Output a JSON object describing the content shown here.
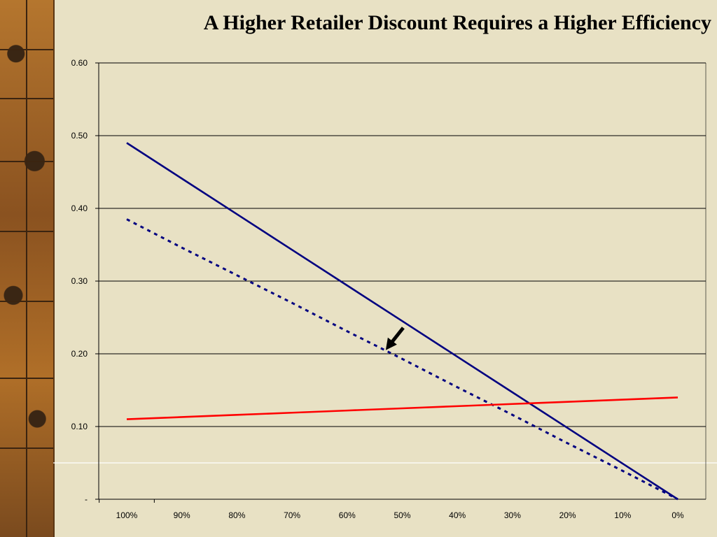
{
  "slide": {
    "title": "A Higher Retailer Discount Requires a Higher Efficiency"
  },
  "chart_data": {
    "type": "line",
    "title": "A Higher Retailer Discount Requires a Higher Efficiency",
    "xlabel": "",
    "ylabel": "",
    "categories": [
      "100%",
      "90%",
      "80%",
      "70%",
      "60%",
      "50%",
      "40%",
      "30%",
      "20%",
      "10%",
      "0%"
    ],
    "x_values": [
      100,
      90,
      80,
      70,
      60,
      50,
      40,
      30,
      20,
      10,
      0
    ],
    "y_ticks": [
      "-",
      "0.10",
      "0.20",
      "0.30",
      "0.40",
      "0.50",
      "0.60"
    ],
    "ylim": [
      0,
      0.6
    ],
    "grid": true,
    "legend": "none",
    "series": [
      {
        "style": "solid",
        "color": "#000080",
        "values": [
          0.49,
          0.441,
          0.392,
          0.343,
          0.294,
          0.245,
          0.196,
          0.147,
          0.098,
          0.049,
          0.0
        ]
      },
      {
        "style": "dotted",
        "color": "#000080",
        "values": [
          0.385,
          0.346,
          0.308,
          0.27,
          0.231,
          0.193,
          0.154,
          0.116,
          0.077,
          0.039,
          0.0
        ]
      },
      {
        "style": "solid",
        "color": "#ff0000",
        "values": [
          0.11,
          0.113,
          0.116,
          0.119,
          0.122,
          0.125,
          0.128,
          0.131,
          0.134,
          0.137,
          0.14
        ]
      }
    ],
    "annotation": {
      "type": "arrow",
      "x": 53,
      "y": 0.205
    },
    "colors": {
      "grid": "#000000",
      "background": "#e8e1c4",
      "white_line": "#ffffff"
    }
  }
}
